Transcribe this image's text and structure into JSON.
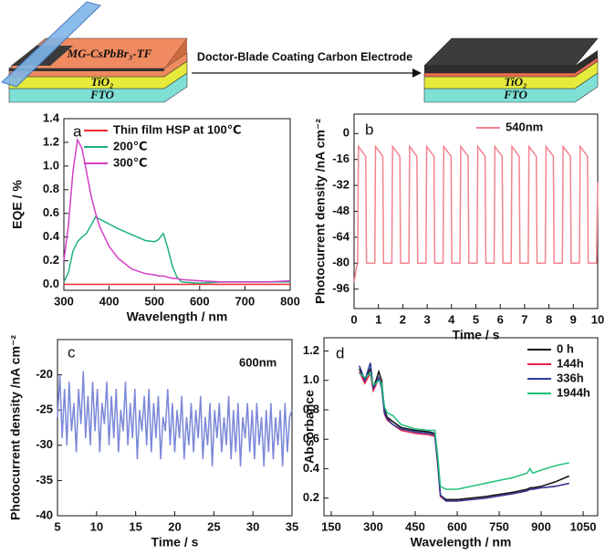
{
  "schematic": {
    "film_label": "MG-CsPbBr₃-TF",
    "tio2_label": "TiO₂",
    "fto_label": "FTO",
    "arrow_label": "Doctor-Blade Coating Carbon Electrode"
  },
  "chart_data": [
    {
      "type": "line",
      "panel_label": "a",
      "xlabel": "Wavelength / nm",
      "ylabel": "EQE / %",
      "x": [
        300,
        310,
        320,
        330,
        340,
        350,
        360,
        370,
        380,
        400,
        420,
        450,
        480,
        500,
        510,
        515,
        520,
        530,
        540,
        550,
        560,
        600,
        650,
        700,
        750,
        800
      ],
      "series": [
        {
          "name": "Thin film HSP at 100℃",
          "color": "#f0282e",
          "values": [
            0,
            0,
            0,
            0,
            0,
            0,
            0,
            0,
            0,
            0,
            0,
            0,
            0,
            0,
            0,
            0,
            0,
            0,
            0,
            0,
            0,
            0,
            0,
            0,
            0,
            0
          ]
        },
        {
          "name": "200℃",
          "color": "#1fb37a",
          "values": [
            0.02,
            0.1,
            0.28,
            0.36,
            0.4,
            0.43,
            0.5,
            0.57,
            0.55,
            0.51,
            0.47,
            0.42,
            0.37,
            0.36,
            0.38,
            0.41,
            0.43,
            0.3,
            0.15,
            0.06,
            0.02,
            0.01,
            0.02,
            0.02,
            0.02,
            0.02
          ]
        },
        {
          "name": "300℃",
          "color": "#d33fc4",
          "values": [
            0.2,
            0.5,
            0.95,
            1.22,
            1.15,
            0.95,
            0.75,
            0.6,
            0.48,
            0.32,
            0.22,
            0.13,
            0.09,
            0.08,
            0.07,
            0.07,
            0.07,
            0.06,
            0.05,
            0.05,
            0.04,
            0.03,
            0.02,
            0.02,
            0.02,
            0.03
          ]
        }
      ],
      "xlim": [
        300,
        800
      ],
      "xticks": [
        300,
        400,
        500,
        600,
        700,
        800
      ],
      "ylim": [
        -0.05,
        1.4
      ],
      "yticks": [
        {
          "value": 0,
          "label": "0.0"
        },
        0.2,
        0.4,
        0.6,
        0.8,
        {
          "value": 1,
          "label": "1.0"
        },
        1.2,
        1.4
      ],
      "legend": "upper right",
      "legend_line": true
    },
    {
      "type": "line",
      "panel_label": "b",
      "xlabel": "Time / s",
      "ylabel": "Photocurrent density /nA cm⁻²",
      "x": [
        0,
        0.1,
        0.15,
        0.18,
        0.48,
        0.51,
        0.85,
        0.88,
        1.18,
        1.21,
        1.55,
        1.58,
        1.88,
        1.91,
        2.25,
        2.28,
        2.58,
        2.61,
        2.95,
        2.98,
        3.28,
        3.31,
        3.65,
        3.68,
        3.98,
        4.01,
        4.35,
        4.38,
        4.68,
        4.71,
        5.05,
        5.08,
        5.38,
        5.41,
        5.75,
        5.78,
        6.08,
        6.11,
        6.45,
        6.48,
        6.78,
        6.81,
        7.15,
        7.18,
        7.48,
        7.51,
        7.85,
        7.88,
        8.18,
        8.21,
        8.55,
        8.58,
        8.88,
        8.91,
        9.25,
        9.28,
        9.58,
        9.61,
        9.95,
        10
      ],
      "series": [
        {
          "name": "540nm",
          "color": "#f4838f",
          "values": [
            -92,
            -82,
            -80,
            -8,
            -14,
            -80,
            -80,
            -8,
            -14,
            -80,
            -80,
            -8,
            -14,
            -80,
            -80,
            -8,
            -14,
            -80,
            -80,
            -8,
            -14,
            -80,
            -80,
            -8,
            -14,
            -80,
            -80,
            -8,
            -14,
            -80,
            -80,
            -8,
            -14,
            -80,
            -80,
            -8,
            -14,
            -80,
            -80,
            -8,
            -14,
            -80,
            -80,
            -8,
            -14,
            -80,
            -80,
            -8,
            -14,
            -80,
            -80,
            -8,
            -14,
            -80,
            -80,
            -8,
            -14,
            -80,
            -80,
            -30
          ]
        }
      ],
      "xlim": [
        0,
        10
      ],
      "xticks": [
        0,
        1,
        2,
        3,
        4,
        5,
        6,
        7,
        8,
        9,
        10
      ],
      "ylim": [
        -108,
        12
      ],
      "yticks": [
        0,
        -16,
        -32,
        -48,
        -64,
        -80,
        -96
      ],
      "legend": "upper right",
      "legend_line": true
    },
    {
      "type": "line",
      "panel_label": "c",
      "xlabel": "Time / s",
      "ylabel": "Photocurrent density /nA cm⁻²",
      "x": [
        5,
        5.3,
        5.6,
        5.9,
        6.2,
        6.5,
        6.8,
        7.1,
        7.4,
        7.7,
        8,
        8.3,
        8.6,
        8.9,
        9.2,
        9.5,
        9.8,
        10.1,
        10.4,
        10.7,
        11,
        11.3,
        11.6,
        11.9,
        12.2,
        12.5,
        12.8,
        13.1,
        13.4,
        13.7,
        14,
        14.3,
        14.6,
        14.9,
        15.2,
        15.5,
        15.8,
        16.1,
        16.4,
        16.7,
        17,
        17.3,
        17.6,
        17.9,
        18.2,
        18.5,
        18.8,
        19.1,
        19.4,
        19.7,
        20,
        20.3,
        20.6,
        20.9,
        21.2,
        21.5,
        21.8,
        22.1,
        22.4,
        22.7,
        23,
        23.3,
        23.6,
        23.9,
        24.2,
        24.5,
        24.8,
        25.1,
        25.4,
        25.7,
        26,
        26.3,
        26.6,
        26.9,
        27.2,
        27.5,
        27.8,
        28.1,
        28.4,
        28.7,
        29,
        29.3,
        29.6,
        29.9,
        30.2,
        30.5,
        30.8,
        31.1,
        31.4,
        31.7,
        32,
        32.3,
        32.6,
        32.9,
        33.2,
        33.5,
        33.8,
        34.1,
        34.4,
        34.7,
        35
      ],
      "series": [
        {
          "name": "600nm",
          "color": "#7b88d8",
          "values": [
            -26,
            -20,
            -29,
            -22,
            -30,
            -21,
            -28,
            -24,
            -31,
            -22,
            -27,
            -19.5,
            -29,
            -23,
            -30,
            -21,
            -28,
            -22,
            -31,
            -24,
            -27,
            -21,
            -30,
            -23,
            -29,
            -22,
            -31,
            -25,
            -28,
            -21,
            -30,
            -24,
            -29,
            -22,
            -32,
            -25,
            -28,
            -23,
            -30,
            -22,
            -31,
            -24,
            -29,
            -23,
            -32,
            -26,
            -28,
            -22,
            -30,
            -24,
            -31,
            -25,
            -29,
            -23,
            -32,
            -26,
            -30,
            -24,
            -31,
            -25,
            -29,
            -23,
            -32,
            -26,
            -30,
            -24,
            -33,
            -25,
            -29,
            -24,
            -31,
            -26,
            -30,
            -23,
            -32,
            -25,
            -31,
            -24,
            -33,
            -26,
            -29,
            -24,
            -31,
            -25,
            -32,
            -24,
            -30,
            -26,
            -33,
            -25,
            -31,
            -24,
            -32,
            -26,
            -30,
            -25,
            -33,
            -24,
            -31,
            -26,
            -25
          ]
        }
      ],
      "xlim": [
        5,
        35
      ],
      "xticks": [
        5,
        10,
        15,
        20,
        25,
        30,
        35
      ],
      "ylim": [
        -40,
        -15
      ],
      "yticks": [
        -20,
        -25,
        -30,
        -35,
        -40
      ],
      "legend": "upper right",
      "legend_line": false
    },
    {
      "type": "line",
      "panel_label": "d",
      "xlabel": "Wavelength / nm",
      "ylabel": "Absorbance",
      "x": [
        250,
        270,
        290,
        300,
        310,
        320,
        330,
        340,
        350,
        370,
        400,
        450,
        500,
        520,
        530,
        540,
        560,
        600,
        700,
        800,
        850,
        860,
        870,
        900,
        950,
        1000
      ],
      "series": [
        {
          "name": "0 h",
          "color": "#111111",
          "values": [
            1.08,
            1.0,
            1.08,
            0.95,
            1.0,
            1.06,
            1.0,
            0.8,
            0.75,
            0.72,
            0.68,
            0.66,
            0.65,
            0.64,
            0.45,
            0.22,
            0.19,
            0.19,
            0.21,
            0.24,
            0.26,
            0.27,
            0.27,
            0.28,
            0.31,
            0.35
          ]
        },
        {
          "name": "144h",
          "color": "#e8204a",
          "values": [
            1.06,
            0.98,
            1.05,
            0.93,
            0.97,
            1.02,
            0.97,
            0.77,
            0.73,
            0.7,
            0.66,
            0.64,
            0.63,
            0.62,
            0.44,
            0.21,
            0.18,
            0.18,
            0.2,
            0.23,
            0.25,
            0.26,
            0.26,
            0.27,
            0.28,
            0.3
          ]
        },
        {
          "name": "336h",
          "color": "#2b3a9a",
          "values": [
            1.1,
            1.0,
            1.12,
            0.95,
            0.98,
            1.02,
            0.95,
            0.78,
            0.74,
            0.7,
            0.67,
            0.65,
            0.64,
            0.63,
            0.45,
            0.22,
            0.18,
            0.18,
            0.2,
            0.23,
            0.25,
            0.26,
            0.26,
            0.27,
            0.28,
            0.3
          ]
        },
        {
          "name": "1944h",
          "color": "#1ec07a",
          "values": [
            1.05,
            1.02,
            1.05,
            0.97,
            0.98,
            1.0,
            0.98,
            0.82,
            0.78,
            0.76,
            0.7,
            0.67,
            0.66,
            0.66,
            0.5,
            0.28,
            0.26,
            0.26,
            0.3,
            0.34,
            0.37,
            0.4,
            0.37,
            0.39,
            0.42,
            0.44
          ]
        }
      ],
      "xlim": [
        124,
        1102
      ],
      "xticks": [
        150,
        300,
        450,
        600,
        750,
        900,
        1050
      ],
      "ylim": [
        0.08,
        1.29
      ],
      "yticks": [
        0.2,
        0.4,
        0.6,
        0.8,
        {
          "value": 1,
          "label": "1.0"
        },
        1.2
      ],
      "legend": "upper right",
      "legend_line": true
    }
  ]
}
